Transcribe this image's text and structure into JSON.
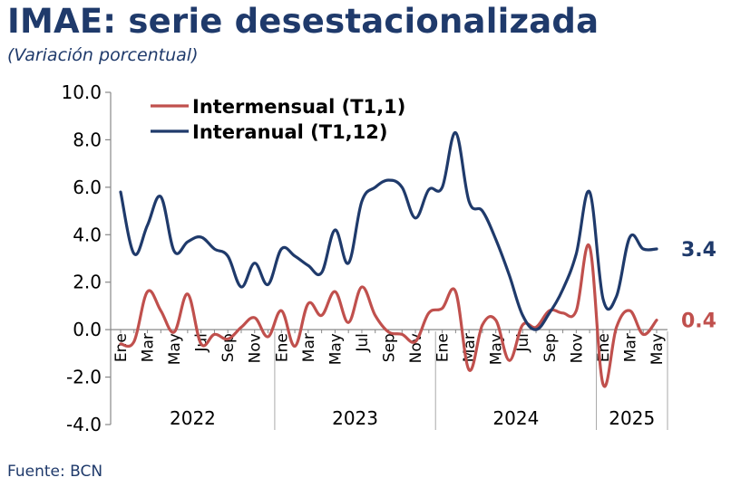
{
  "title": "IMAE: serie desestacionalizada",
  "subtitle": "(Variación porcentual)",
  "source": "Fuente: BCN",
  "chart_data": {
    "type": "line",
    "title": "IMAE: serie desestacionalizada",
    "subtitle": "(Variación porcentual)",
    "ylim": [
      -4.0,
      10.0
    ],
    "yticks": [
      "10.0",
      "8.0",
      "6.0",
      "4.0",
      "2.0",
      "0.0",
      "-2.0",
      "-4.0"
    ],
    "ytick_values": [
      10,
      8,
      6,
      4,
      2,
      0,
      -2,
      -4
    ],
    "month_labels": [
      "Ene",
      "Mar",
      "May",
      "Jul",
      "Sep",
      "Nov",
      "Ene",
      "Mar",
      "May",
      "Jul",
      "Sep",
      "Nov",
      "Ene",
      "Mar",
      "May",
      "Jul",
      "Sep",
      "Nov",
      "Ene",
      "Mar",
      "May"
    ],
    "month_label_indices": [
      0,
      2,
      4,
      6,
      8,
      10,
      12,
      14,
      16,
      18,
      20,
      22,
      24,
      26,
      28,
      30,
      32,
      34,
      36,
      38,
      40
    ],
    "years": [
      {
        "label": "2022",
        "start": 0,
        "end": 11
      },
      {
        "label": "2023",
        "start": 12,
        "end": 23
      },
      {
        "label": "2024",
        "start": 24,
        "end": 35
      },
      {
        "label": "2025",
        "start": 36,
        "end": 40
      }
    ],
    "n_points": 41,
    "legend_position": "top-left",
    "grid": false,
    "series": [
      {
        "name": "Intermensual (T1,1)",
        "color": "#c0504d",
        "end_label": "0.4",
        "values": [
          -0.6,
          -0.5,
          1.6,
          0.8,
          -0.1,
          1.5,
          -0.6,
          -0.2,
          -0.4,
          0.1,
          0.5,
          -0.3,
          0.8,
          -0.7,
          1.1,
          0.6,
          1.6,
          0.3,
          1.8,
          0.6,
          -0.1,
          -0.2,
          -0.5,
          0.7,
          0.9,
          1.6,
          -1.7,
          0.2,
          0.4,
          -1.3,
          0.2,
          0.1,
          0.8,
          0.7,
          0.8,
          3.5,
          -2.3,
          0.1,
          0.8,
          -0.2,
          0.4
        ]
      },
      {
        "name": "Interanual (T1,12)",
        "color": "#1f3a6b",
        "end_label": "3.4",
        "values": [
          5.8,
          3.2,
          4.4,
          5.6,
          3.3,
          3.7,
          3.9,
          3.4,
          3.1,
          1.8,
          2.8,
          1.9,
          3.4,
          3.1,
          2.7,
          2.4,
          4.2,
          2.8,
          5.4,
          6.0,
          6.3,
          6.0,
          4.7,
          5.9,
          6.0,
          8.3,
          5.4,
          5.0,
          3.8,
          2.3,
          0.6,
          0.0,
          0.7,
          1.7,
          3.2,
          5.8,
          1.3,
          1.4,
          3.9,
          3.4,
          3.4
        ]
      }
    ]
  }
}
